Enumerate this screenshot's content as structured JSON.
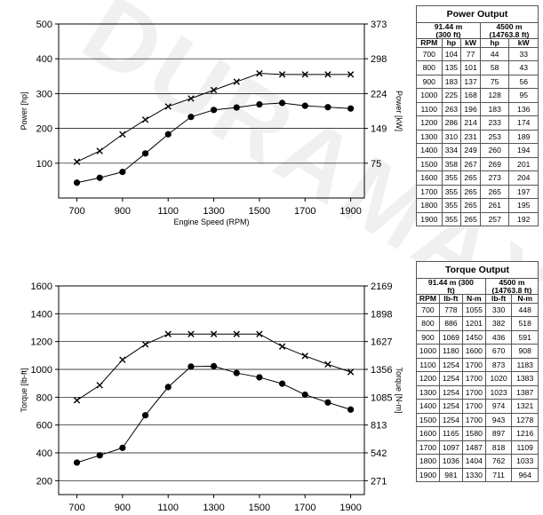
{
  "watermark": "DURAMAX",
  "chart_data": [
    {
      "type": "line",
      "xlabel": "Engine Speed (RPM)",
      "ylabel": "Power [hp]",
      "ylabel_right": "Power [kW]",
      "x_ticks": [
        700,
        900,
        1100,
        1300,
        1500,
        1700,
        1900
      ],
      "y_ticks": [
        100,
        200,
        300,
        400,
        500
      ],
      "y_right_ticks": [
        "75",
        "149",
        "224",
        "298",
        "373"
      ],
      "xlim": [
        620,
        1960
      ],
      "ylim": [
        0,
        500
      ],
      "grid": "horizontal",
      "series": [
        {
          "marker": "x",
          "x": [
            700,
            800,
            900,
            1000,
            1100,
            1200,
            1300,
            1400,
            1500,
            1600,
            1700,
            1800,
            1900
          ],
          "values": [
            104,
            135,
            183,
            225,
            263,
            286,
            310,
            334,
            358,
            355,
            355,
            355,
            355
          ]
        },
        {
          "marker": "circle",
          "x": [
            700,
            800,
            900,
            1000,
            1100,
            1200,
            1300,
            1400,
            1500,
            1600,
            1700,
            1800,
            1900
          ],
          "values": [
            44,
            58,
            75,
            128,
            183,
            233,
            253,
            260,
            269,
            273,
            265,
            261,
            257
          ]
        }
      ]
    },
    {
      "type": "line",
      "xlabel": "Engine Speed (RPM)",
      "ylabel": "Torque [lb-ft]",
      "ylabel_right": "Torque [N-m]",
      "x_ticks": [
        700,
        900,
        1100,
        1300,
        1500,
        1700,
        1900
      ],
      "y_ticks": [
        200,
        400,
        600,
        800,
        1000,
        1200,
        1400,
        1600
      ],
      "y_right_ticks": [
        "271",
        "542",
        "813",
        "1085",
        "1356",
        "1627",
        "1898",
        "2169"
      ],
      "xlim": [
        620,
        1960
      ],
      "ylim": [
        100,
        1600
      ],
      "grid": "horizontal",
      "series": [
        {
          "marker": "x",
          "x": [
            700,
            800,
            900,
            1000,
            1100,
            1200,
            1300,
            1400,
            1500,
            1600,
            1700,
            1800,
            1900
          ],
          "values": [
            778,
            886,
            1069,
            1180,
            1254,
            1254,
            1254,
            1254,
            1254,
            1165,
            1097,
            1036,
            981
          ]
        },
        {
          "marker": "circle",
          "x": [
            700,
            800,
            900,
            1000,
            1100,
            1200,
            1300,
            1400,
            1500,
            1600,
            1700,
            1800,
            1900
          ],
          "values": [
            330,
            382,
            436,
            670,
            873,
            1020,
            1023,
            974,
            943,
            897,
            818,
            762,
            711
          ]
        }
      ]
    }
  ],
  "power_table": {
    "caption": "Power Output",
    "col1_title": [
      "91.44 m",
      "(300 ft)"
    ],
    "col2_title": [
      "4500 m",
      "(14763.8 ft)"
    ],
    "headers": [
      "RPM",
      "hp",
      "kW",
      "hp",
      "kW"
    ],
    "rows": [
      [
        "700",
        "104",
        "77",
        "44",
        "33"
      ],
      [
        "800",
        "135",
        "101",
        "58",
        "43"
      ],
      [
        "900",
        "183",
        "137",
        "75",
        "56"
      ],
      [
        "1000",
        "225",
        "168",
        "128",
        "95"
      ],
      [
        "1100",
        "263",
        "196",
        "183",
        "136"
      ],
      [
        "1200",
        "286",
        "214",
        "233",
        "174"
      ],
      [
        "1300",
        "310",
        "231",
        "253",
        "189"
      ],
      [
        "1400",
        "334",
        "249",
        "260",
        "194"
      ],
      [
        "1500",
        "358",
        "267",
        "269",
        "201"
      ],
      [
        "1600",
        "355",
        "265",
        "273",
        "204"
      ],
      [
        "1700",
        "355",
        "265",
        "265",
        "197"
      ],
      [
        "1800",
        "355",
        "265",
        "261",
        "195"
      ],
      [
        "1900",
        "355",
        "265",
        "257",
        "192"
      ]
    ]
  },
  "torque_table": {
    "caption": "Torque Output",
    "col1_title": [
      "91.44 m (300",
      "ft)"
    ],
    "col2_title": [
      "4500 m",
      "(14763.8 ft)"
    ],
    "headers": [
      "RPM",
      "lb-ft",
      "N-m",
      "lb-ft",
      "N-m"
    ],
    "rows": [
      [
        "700",
        "778",
        "1055",
        "330",
        "448"
      ],
      [
        "800",
        "886",
        "1201",
        "382",
        "518"
      ],
      [
        "900",
        "1069",
        "1450",
        "436",
        "591"
      ],
      [
        "1000",
        "1180",
        "1600",
        "670",
        "908"
      ],
      [
        "1100",
        "1254",
        "1700",
        "873",
        "1183"
      ],
      [
        "1200",
        "1254",
        "1700",
        "1020",
        "1383"
      ],
      [
        "1300",
        "1254",
        "1700",
        "1023",
        "1387"
      ],
      [
        "1400",
        "1254",
        "1700",
        "974",
        "1321"
      ],
      [
        "1500",
        "1254",
        "1700",
        "943",
        "1278"
      ],
      [
        "1600",
        "1165",
        "1580",
        "897",
        "1216"
      ],
      [
        "1700",
        "1097",
        "1487",
        "818",
        "1109"
      ],
      [
        "1800",
        "1036",
        "1404",
        "762",
        "1033"
      ],
      [
        "1900",
        "981",
        "1330",
        "711",
        "964"
      ]
    ]
  }
}
